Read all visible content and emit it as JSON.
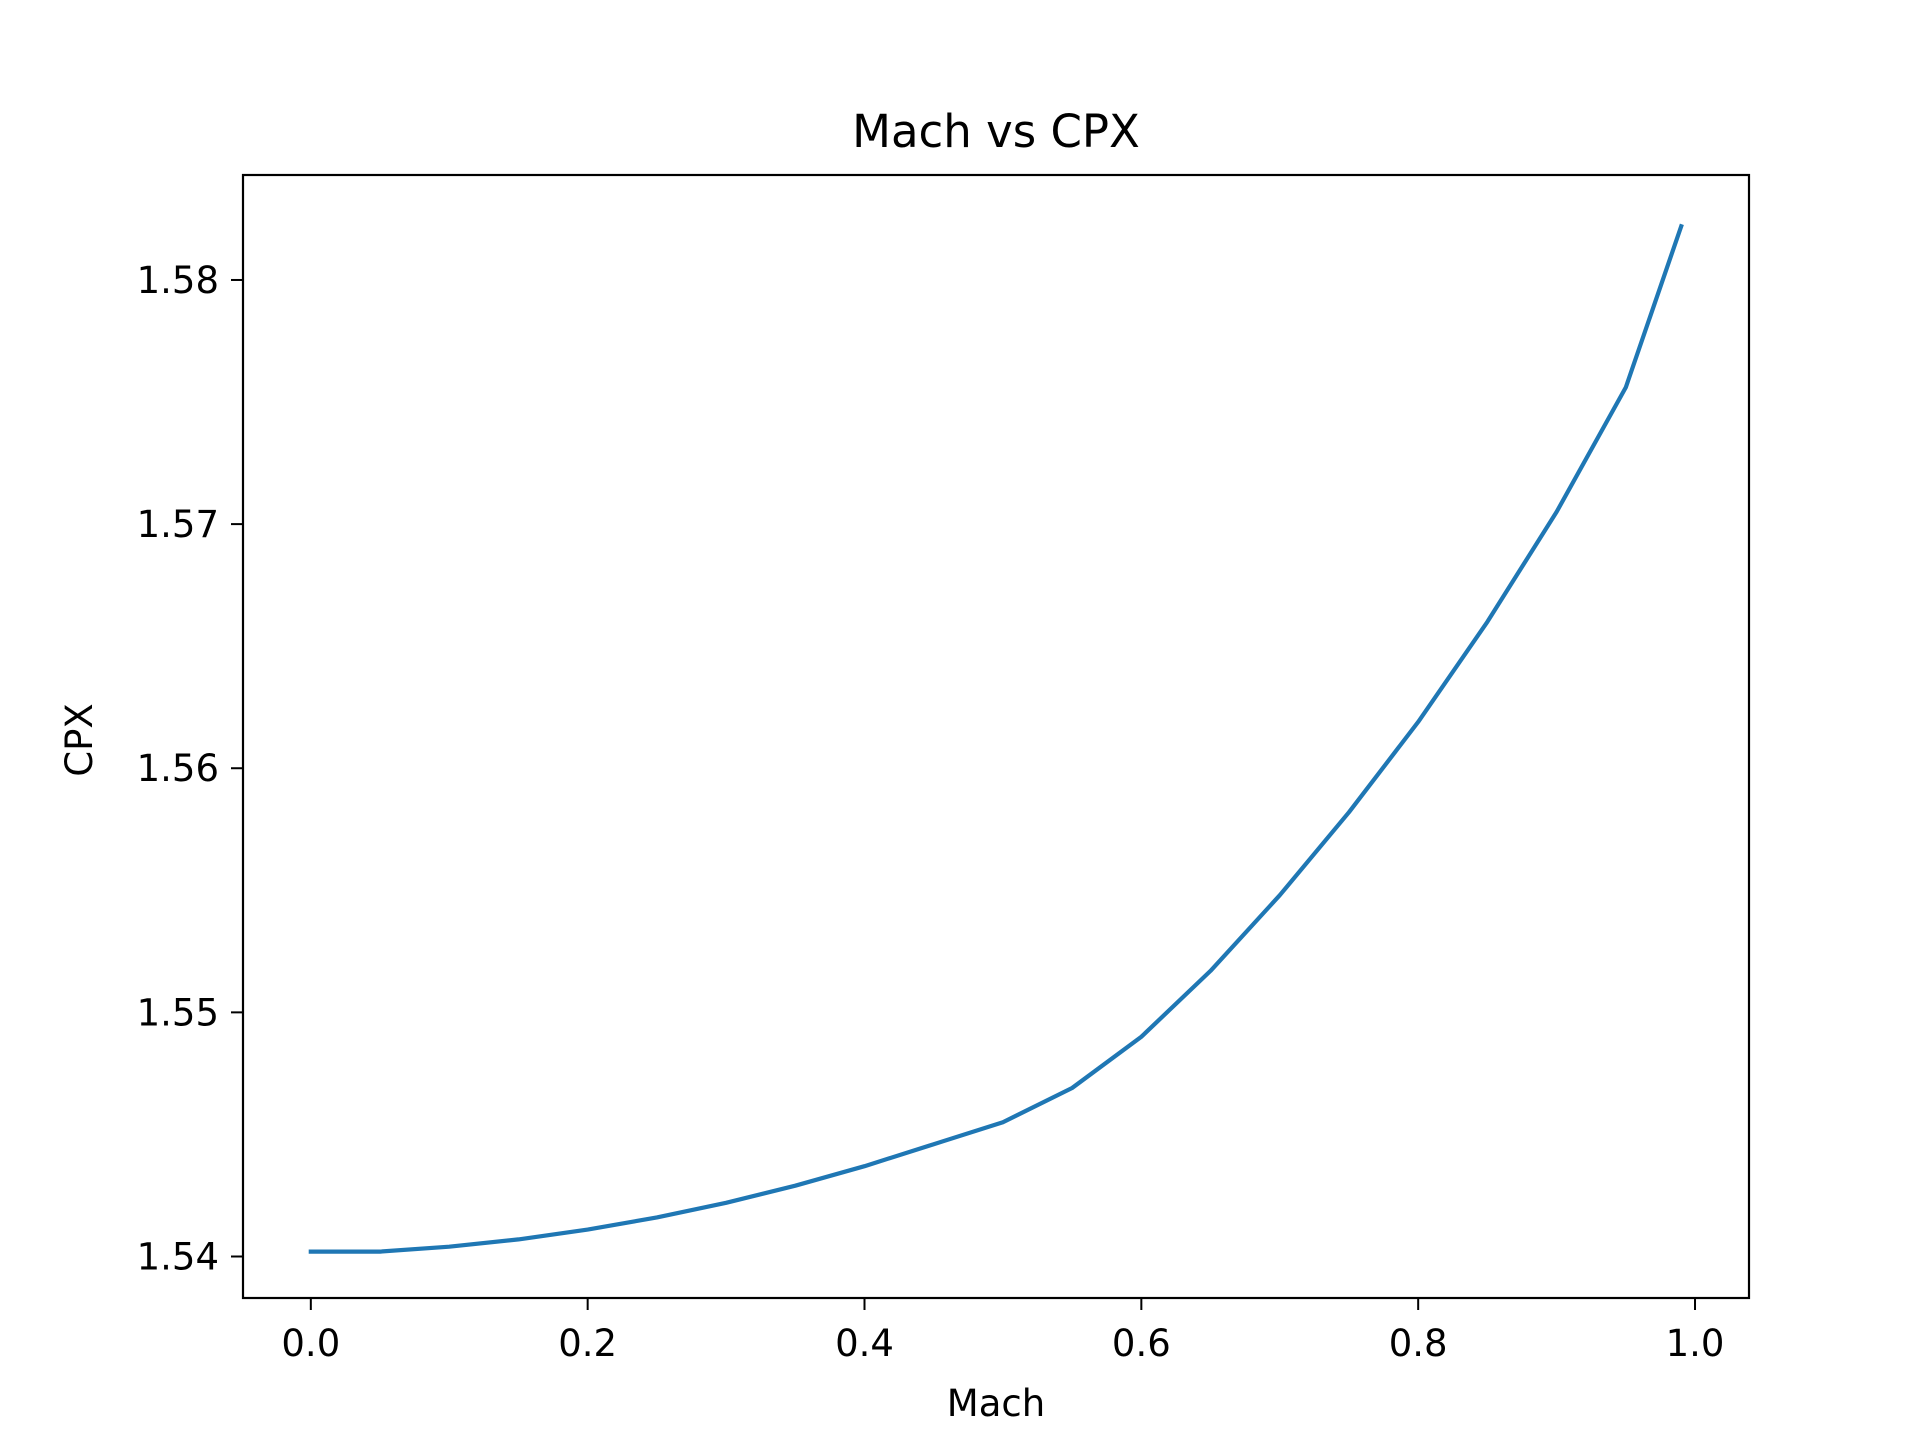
{
  "chart_data": {
    "type": "line",
    "title": "Mach vs CPX",
    "xlabel": "Mach",
    "ylabel": "CPX",
    "xlim": [
      -0.049,
      1.039
    ],
    "ylim": [
      1.5383,
      1.5843
    ],
    "xticks": [
      0.0,
      0.2,
      0.4,
      0.6,
      0.8,
      1.0
    ],
    "xtick_labels": [
      "0.0",
      "0.2",
      "0.4",
      "0.6",
      "0.8",
      "1.0"
    ],
    "yticks": [
      1.54,
      1.55,
      1.56,
      1.57,
      1.58
    ],
    "ytick_labels": [
      "1.54",
      "1.55",
      "1.56",
      "1.57",
      "1.58"
    ],
    "grid": false,
    "series_color": "#1f77b4",
    "series": [
      {
        "x": [
          0.0,
          0.05,
          0.1,
          0.15,
          0.2,
          0.25,
          0.3,
          0.35,
          0.4,
          0.45,
          0.5,
          0.55,
          0.6,
          0.65,
          0.7,
          0.75,
          0.8,
          0.85,
          0.9,
          0.95,
          0.99
        ],
        "y": [
          1.5402,
          1.5402,
          1.5404,
          1.5407,
          1.5411,
          1.5416,
          1.5422,
          1.5429,
          1.5437,
          1.5446,
          1.5455,
          1.5469,
          1.549,
          1.5517,
          1.5548,
          1.5582,
          1.5619,
          1.566,
          1.5705,
          1.5756,
          1.5822
        ]
      }
    ]
  }
}
